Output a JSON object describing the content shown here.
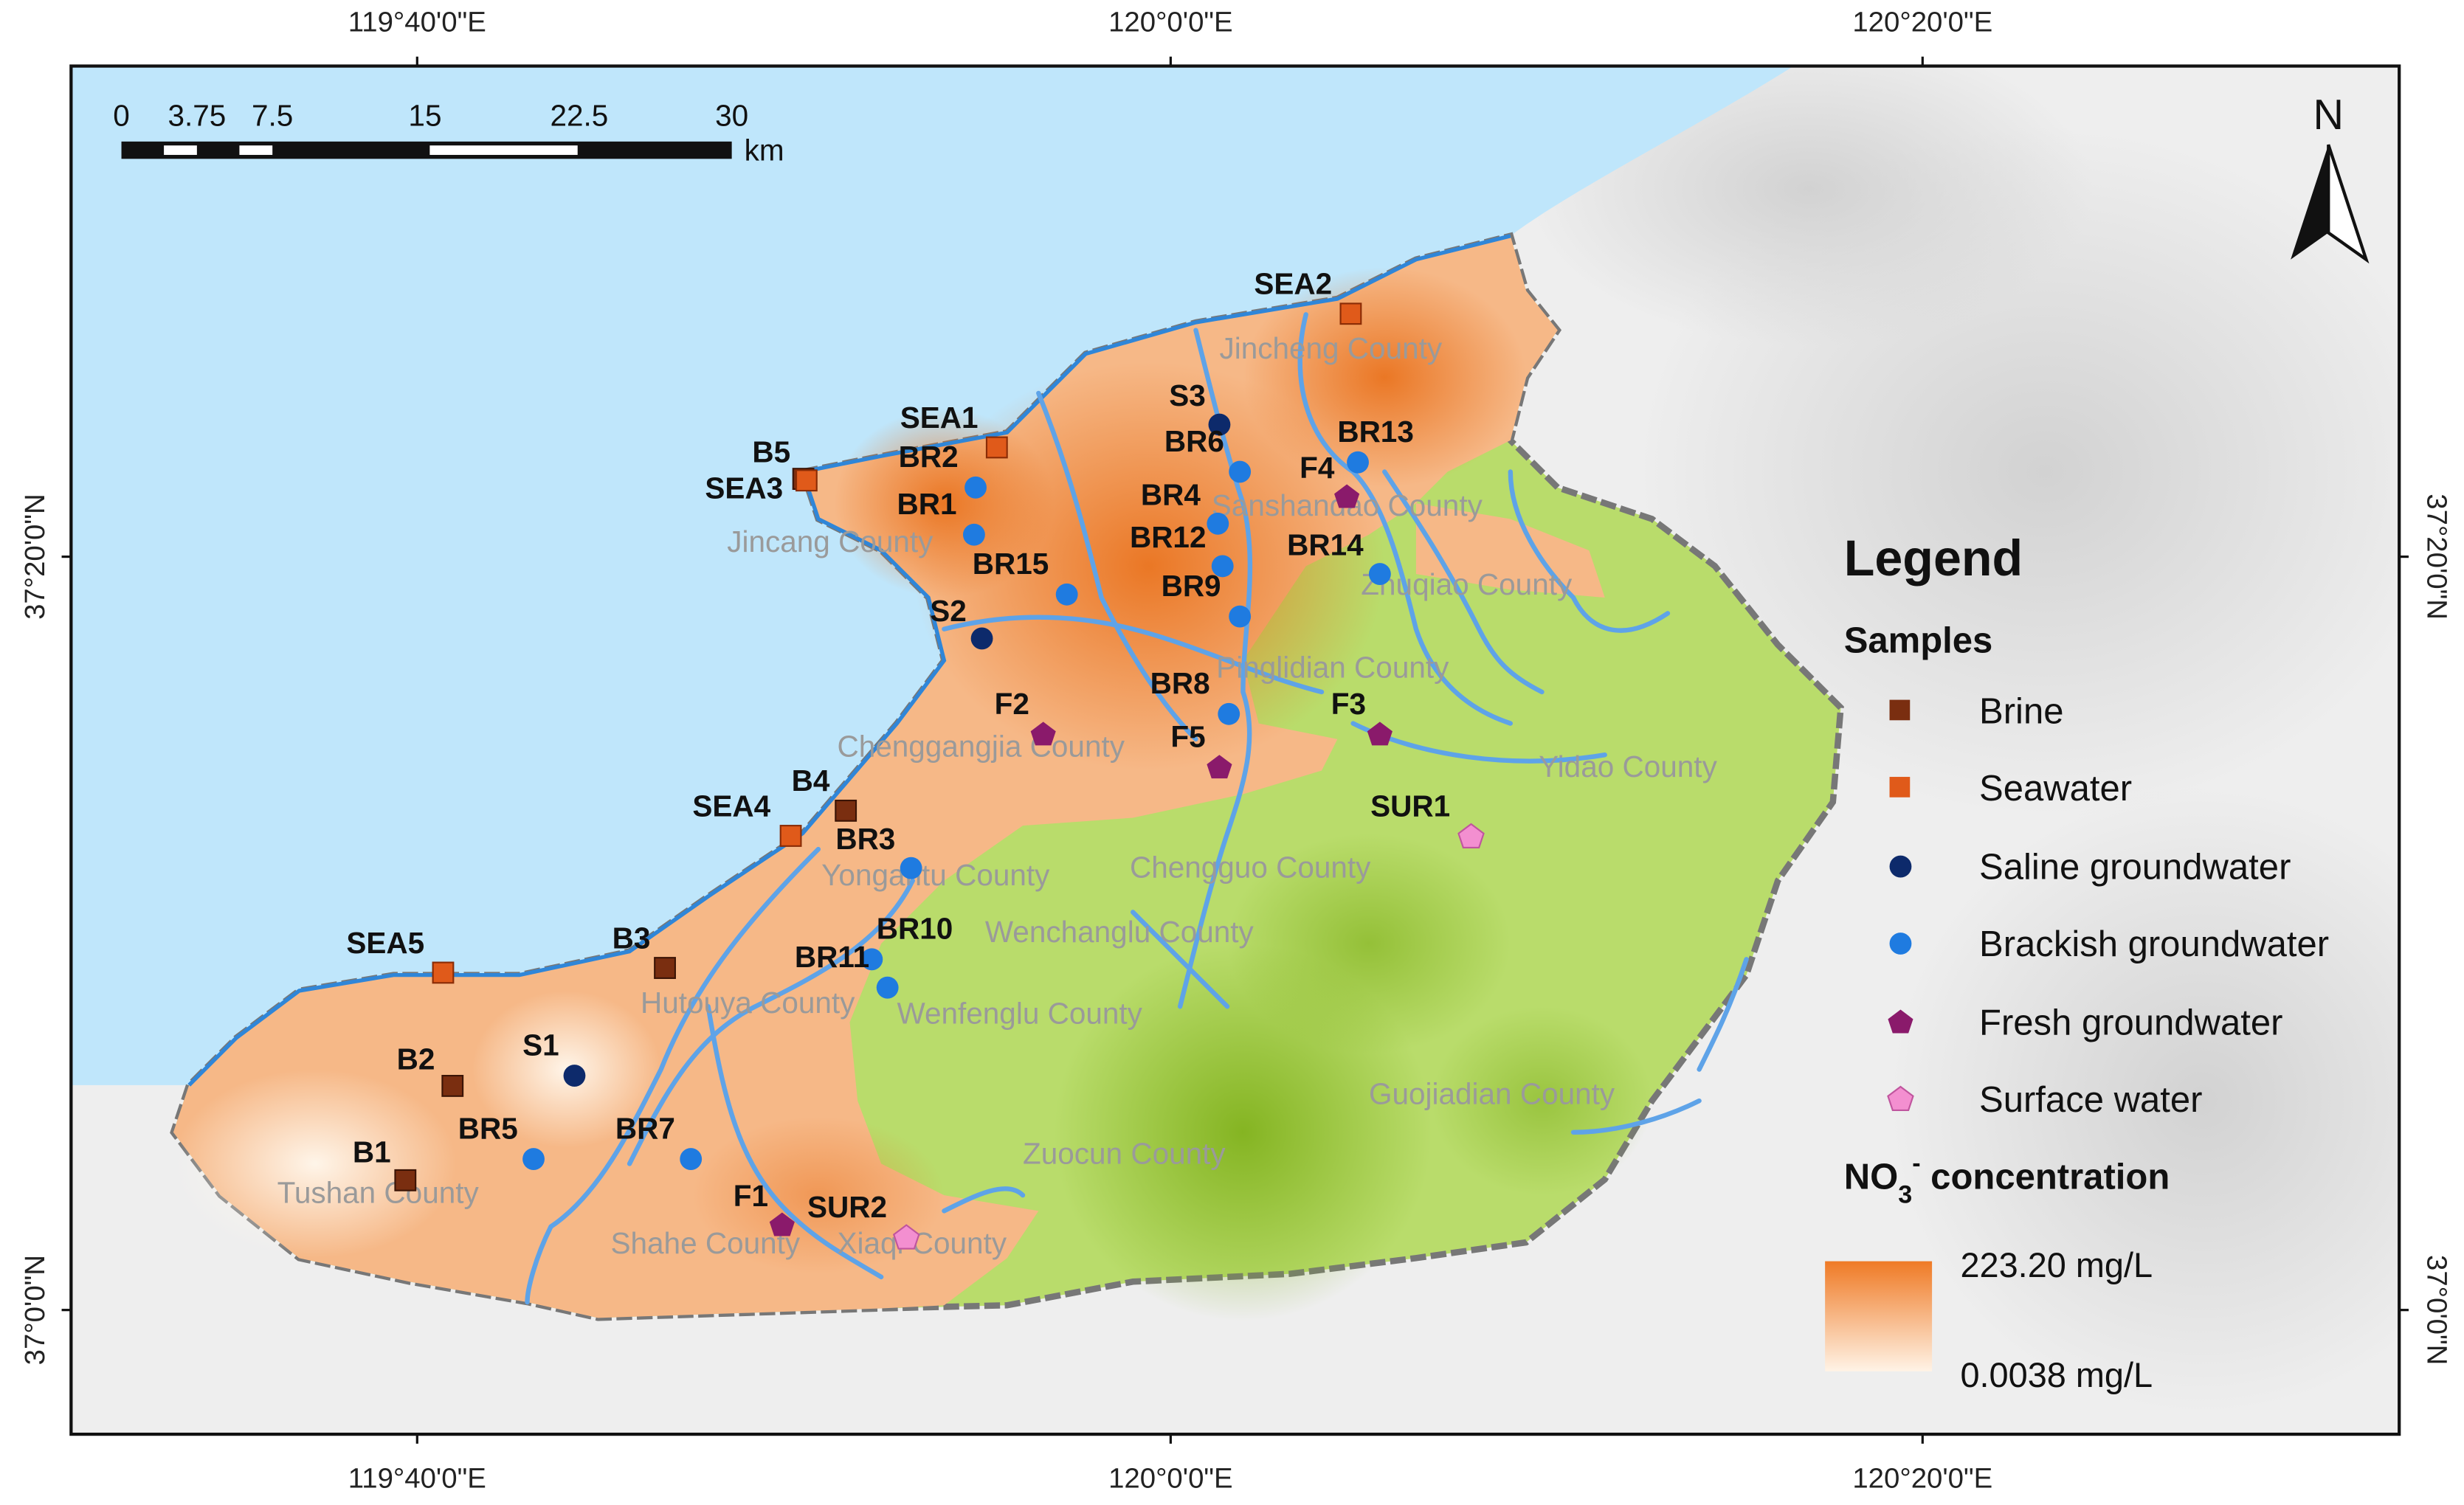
{
  "graticule": {
    "top_labels": [
      "119°40'0\"E",
      "120°0'0\"E",
      "120°20'0\"E"
    ],
    "bottom_labels": [
      "119°40'0\"E",
      "120°0'0\"E",
      "120°20'0\"E"
    ],
    "left_labels": [
      "37°20'0\"N",
      "37°0'0\"N"
    ],
    "right_labels": [
      "37°20'0\"N",
      "37°0'0\"N"
    ]
  },
  "scale_bar": {
    "ticks": [
      "0",
      "3.75",
      "7.5",
      "15",
      "22.5",
      "30"
    ],
    "unit": "km"
  },
  "north_arrow": {
    "label": "N"
  },
  "counties": [
    "Jincheng County",
    "Sanshandao County",
    "Zhuqiao County",
    "Jincang County",
    "Pinglidian County",
    "Chenggangjia County",
    "Yidao County",
    "Yongantu County",
    "Chengguo County",
    "Wenchanglu County",
    "Hutouya County",
    "Wenfenglu County",
    "Guojiadian County",
    "Zuocun County",
    "Tushan County",
    "Shahe County",
    "Xiaqi County"
  ],
  "samples": {
    "brine": [
      "B1",
      "B2",
      "B3",
      "B4",
      "B5"
    ],
    "seawater": [
      "SEA1",
      "SEA2",
      "SEA3",
      "SEA4",
      "SEA5"
    ],
    "saline": [
      "S1",
      "S2",
      "S3"
    ],
    "brackish": [
      "BR1",
      "BR2",
      "BR4",
      "BR5",
      "BR6",
      "BR7",
      "BR8",
      "BR9",
      "BR10",
      "BR11",
      "BR12",
      "BR13",
      "BR14",
      "BR15",
      "BR3"
    ],
    "fresh": [
      "F1",
      "F2",
      "F3",
      "F4",
      "F5"
    ],
    "surface": [
      "SUR1",
      "SUR2"
    ]
  },
  "legend": {
    "title": "Legend",
    "samples_heading": "Samples",
    "items": [
      {
        "label": "Brine",
        "symbol": "square",
        "color": "#7a2e10"
      },
      {
        "label": "Seawater",
        "symbol": "square",
        "color": "#e05a1a"
      },
      {
        "label": "Saline groundwater",
        "symbol": "circle",
        "color": "#0d2a6b"
      },
      {
        "label": "Brackish groundwater",
        "symbol": "circle",
        "color": "#1f7be0"
      },
      {
        "label": "Fresh groundwater",
        "symbol": "pentagon",
        "color": "#8a1a6b"
      },
      {
        "label": "Surface water",
        "symbol": "pentagon",
        "color": "#f38fd0"
      }
    ],
    "concentration_heading": "NO3- concentration",
    "ramp_high": "223.20 mg/L",
    "ramp_low": "0.0038 mg/L",
    "ramp_colors": [
      "#ef7a25",
      "#fff3e6"
    ]
  },
  "colors": {
    "sea": "#bfe6fb",
    "lowland": "#f3a669",
    "upland": "#b9dc6b",
    "river": "#5ea3e8",
    "boundary": "#808080"
  }
}
